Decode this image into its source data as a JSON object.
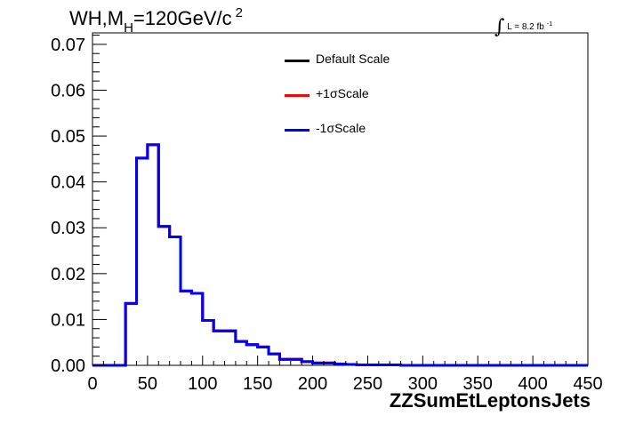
{
  "chart_data": {
    "type": "line",
    "title_prefix": "WH,M",
    "title_sub": "H",
    "title_suffix": "=120GeV/c",
    "title_sup": "2",
    "luminosity_label": "L = 8.2 fb",
    "luminosity_sup": "-1",
    "luminosity_symbol": "∫",
    "xlabel": "ZZSumEtLeptonsJets",
    "ylabel": "",
    "xlim": [
      0,
      450
    ],
    "ylim": [
      0,
      0.0725
    ],
    "xticks": [
      "0",
      "50",
      "100",
      "150",
      "200",
      "250",
      "300",
      "350",
      "400",
      "450"
    ],
    "yticks": [
      "0.00",
      "0.01",
      "0.02",
      "0.03",
      "0.04",
      "0.05",
      "0.06",
      "0.07"
    ],
    "legend_position": "top-center",
    "grid": false,
    "bin_width": 10,
    "bin_start": 0,
    "series": [
      {
        "name": "Default Scale",
        "color": "#000000",
        "values": [
          0,
          0,
          0,
          0.0135,
          0.0452,
          0.0481,
          0.0303,
          0.028,
          0.0162,
          0.0157,
          0.0098,
          0.0075,
          0.0075,
          0.0052,
          0.0045,
          0.004,
          0.0025,
          0.0013,
          0.0013,
          0.0008,
          0.0005,
          0.0005,
          0.0003,
          0.0002,
          0.0001,
          0.0001,
          0.0001,
          0.0001,
          0,
          0,
          0,
          0,
          0,
          0,
          0,
          0,
          0,
          0,
          0,
          0,
          0,
          0,
          0,
          0,
          0
        ]
      },
      {
        "name": "+1σScale",
        "color": "#ff0000",
        "values": [
          0,
          0,
          0,
          0.0135,
          0.0452,
          0.0481,
          0.0303,
          0.028,
          0.0162,
          0.0157,
          0.0098,
          0.0075,
          0.0075,
          0.0052,
          0.0045,
          0.004,
          0.0025,
          0.0013,
          0.0013,
          0.0008,
          0.0005,
          0.0005,
          0.0003,
          0.0002,
          0.0001,
          0.0001,
          0.0001,
          0.0001,
          0,
          0,
          0,
          0,
          0,
          0,
          0,
          0,
          0,
          0,
          0,
          0,
          0,
          0,
          0,
          0,
          0
        ]
      },
      {
        "name": "-1σScale",
        "color": "#0000ff",
        "values": [
          0,
          0,
          0,
          0.0135,
          0.0452,
          0.0481,
          0.0303,
          0.028,
          0.0162,
          0.0157,
          0.0098,
          0.0075,
          0.0075,
          0.0052,
          0.0045,
          0.004,
          0.0025,
          0.0013,
          0.0013,
          0.0008,
          0.0005,
          0.0005,
          0.0003,
          0.0002,
          0.0001,
          0.0001,
          0.0001,
          0.0001,
          0,
          0,
          0,
          0,
          0,
          0,
          0,
          0,
          0,
          0,
          0,
          0,
          0,
          0,
          0,
          0,
          0
        ]
      }
    ]
  }
}
